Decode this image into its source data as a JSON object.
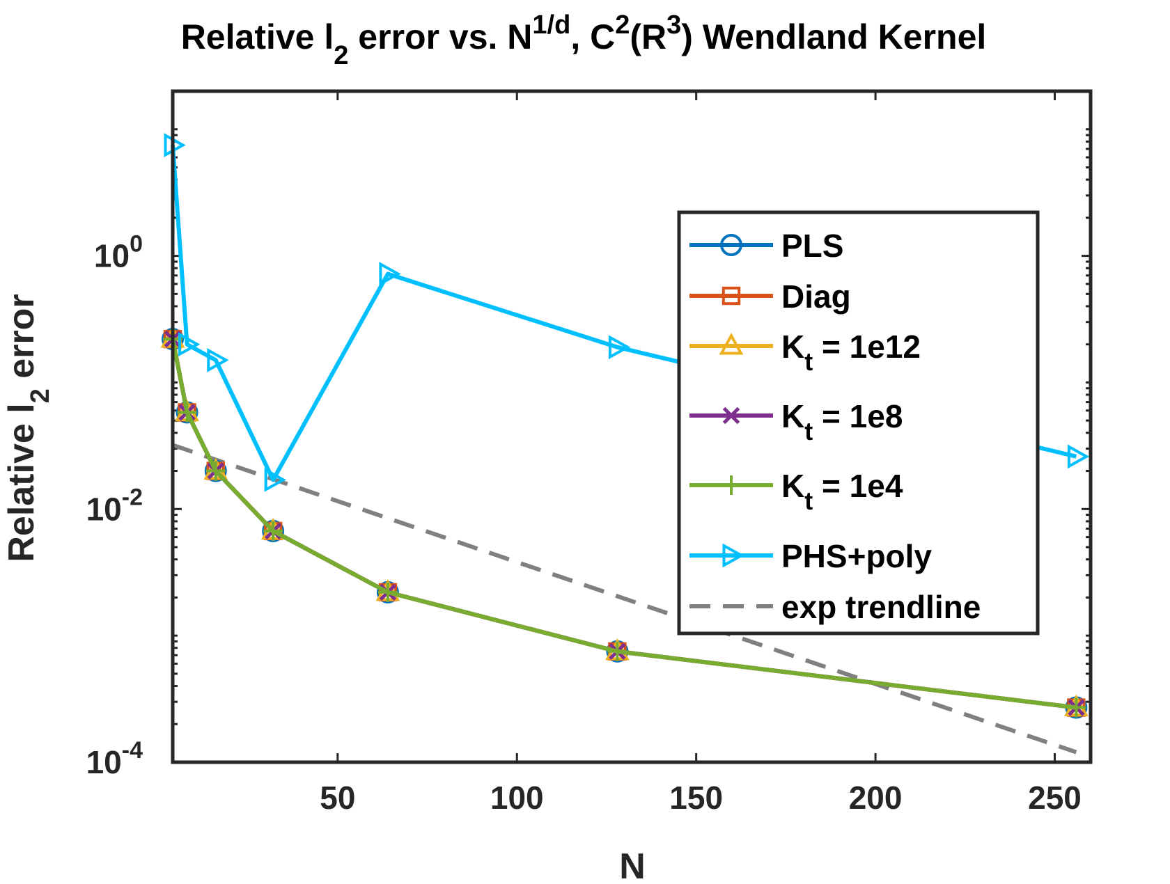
{
  "chart_data": {
    "type": "line",
    "title": {
      "p1": "Relative l",
      "p1_sub": "2",
      "p2": " error vs. N",
      "p2_sup": "1/d",
      "p3": ", C",
      "p3_sup": "2",
      "p4": "(R",
      "p4_sup": "3",
      "p5": ") Wendland Kernel"
    },
    "xlabel": "N",
    "ylabel": {
      "main": "Relative l",
      "sub": "2",
      "rest": " error"
    },
    "x_axis": {
      "scale": "linear",
      "range": [
        4,
        260
      ],
      "ticks": [
        "50",
        "100",
        "150",
        "200",
        "250"
      ],
      "tick_values": [
        50,
        100,
        150,
        200,
        250
      ]
    },
    "y_axis": {
      "scale": "log",
      "range": [
        0.0001,
        20
      ],
      "ticks": [
        {
          "value": 1,
          "base": "10",
          "exp": "0"
        },
        {
          "value": 0.01,
          "base": "10",
          "exp": "-2"
        },
        {
          "value": 0.0001,
          "base": "10",
          "exp": "-4"
        }
      ]
    },
    "x": [
      4,
      8,
      16,
      32,
      64,
      128,
      256
    ],
    "series": [
      {
        "name": "PLS",
        "color": "#0072BD",
        "marker": "circle",
        "values": [
          0.22,
          0.058,
          0.02,
          0.0067,
          0.0022,
          0.00075,
          0.00027
        ]
      },
      {
        "name": "Diag",
        "color": "#D95319",
        "marker": "square",
        "values": [
          0.22,
          0.058,
          0.02,
          0.0067,
          0.0022,
          0.00075,
          0.00027
        ]
      },
      {
        "name": "K",
        "sub": "t",
        "rest": " = 1e12",
        "color": "#EDB120",
        "marker": "triangle-up",
        "values": [
          0.22,
          0.058,
          0.02,
          0.0067,
          0.0022,
          0.00075,
          0.00027
        ]
      },
      {
        "name": "K",
        "sub": "t",
        "rest": " = 1e8",
        "color": "#7E2F8E",
        "marker": "x",
        "values": [
          0.22,
          0.058,
          0.02,
          0.0067,
          0.0022,
          0.00075,
          0.00027
        ]
      },
      {
        "name": "K",
        "sub": "t",
        "rest": " = 1e4",
        "color": "#77AC30",
        "marker": "plus",
        "values": [
          0.22,
          0.058,
          0.02,
          0.0067,
          0.0022,
          0.00075,
          0.00027
        ]
      },
      {
        "name": "PHS+poly",
        "color": "#00BFFF",
        "marker": "triangle-right",
        "values": [
          7.5,
          0.2,
          0.15,
          0.017,
          0.72,
          0.19,
          0.026
        ]
      },
      {
        "name": "exp trendline",
        "color": "#808080",
        "marker": "none",
        "dashed": true,
        "x": [
          4,
          256
        ],
        "values": [
          0.032,
          0.00012
        ]
      }
    ],
    "legend": {
      "position": "right"
    },
    "grid": false
  }
}
